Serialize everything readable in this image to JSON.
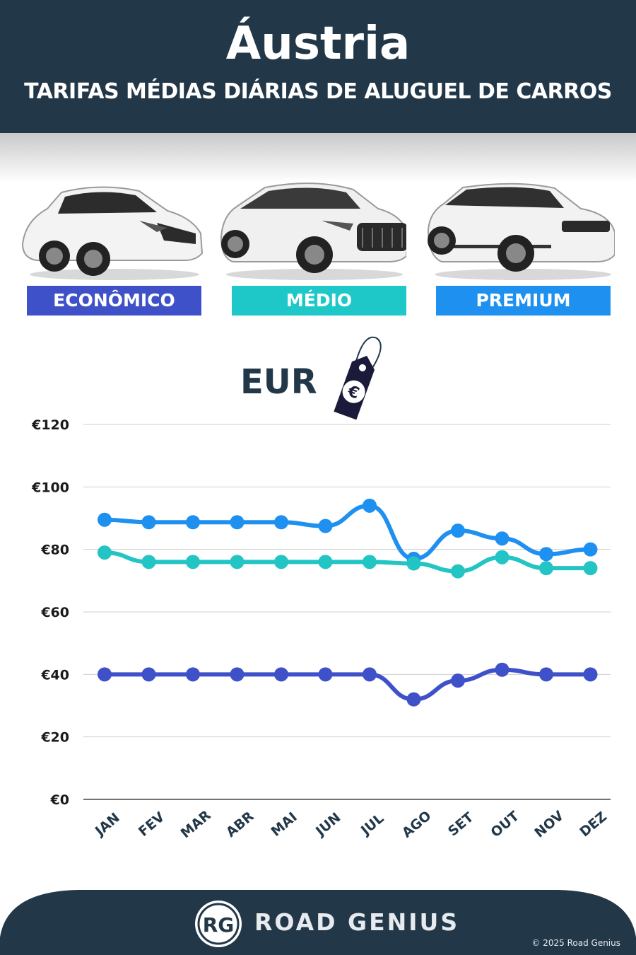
{
  "header": {
    "country": "Áustria",
    "subtitle": "TARIFAS MÉDIAS DIÁRIAS DE ALUGUEL DE CARROS"
  },
  "categories": [
    {
      "label": "ECONÔMICO",
      "color": "#3f51c9"
    },
    {
      "label": "MÉDIO",
      "color": "#1ec8c8"
    },
    {
      "label": "PREMIUM",
      "color": "#1e90f0"
    }
  ],
  "currency": {
    "label": "EUR",
    "symbol": "€"
  },
  "chart_data": {
    "type": "line",
    "categories": [
      "JAN",
      "FEV",
      "MAR",
      "ABR",
      "MAI",
      "JUN",
      "JUL",
      "AGO",
      "SET",
      "OUT",
      "NOV",
      "DEZ"
    ],
    "series": [
      {
        "name": "PREMIUM",
        "color": "#1e90f0",
        "values": [
          89.5,
          88.7,
          88.7,
          88.7,
          88.7,
          87.5,
          94,
          77,
          86,
          83.5,
          78.5,
          80
        ]
      },
      {
        "name": "MÉDIO",
        "color": "#22c4c4",
        "values": [
          79,
          76,
          76,
          76,
          76,
          76,
          76,
          75.5,
          73,
          77.5,
          74,
          74
        ]
      },
      {
        "name": "ECONÔMICO",
        "color": "#3f51c9",
        "values": [
          40,
          40,
          40,
          40,
          40,
          40,
          40,
          32,
          38,
          41.5,
          40,
          40
        ]
      }
    ],
    "yticks": [
      "€0",
      "€20",
      "€40",
      "€60",
      "€80",
      "€100",
      "€120"
    ],
    "ylim": [
      0,
      120
    ],
    "grid": true
  },
  "footer": {
    "logo_text": "RG",
    "brand": "ROAD GENIUS",
    "copyright": "© 2025 Road Genius"
  }
}
